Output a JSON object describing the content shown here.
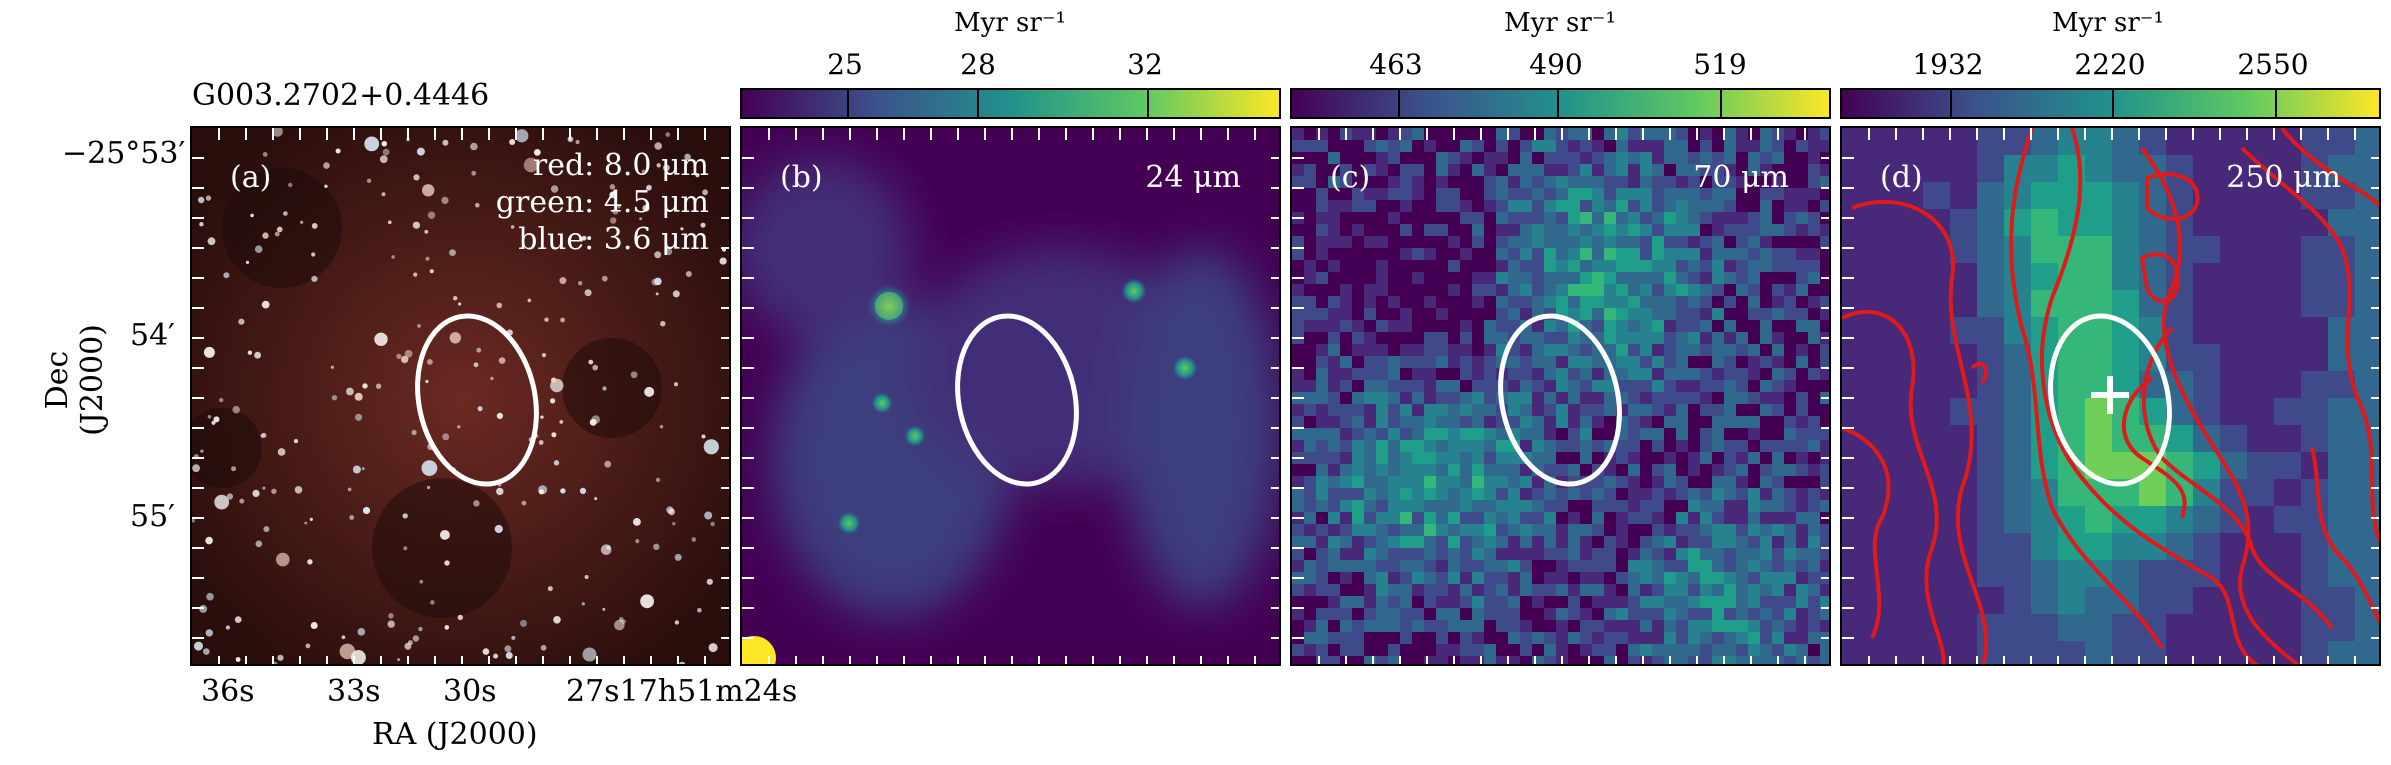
{
  "source_name": "G003.2702+0.4446",
  "panels": [
    {
      "tag": "(a)",
      "legend": [
        "red: 8.0 μm",
        "green: 4.5 μm",
        "blue: 3.6 μm"
      ]
    },
    {
      "tag": "(b)",
      "band": "24 μm",
      "colorbar": {
        "unit": "Myr sr⁻¹",
        "ticks": [
          "25",
          "28",
          "32"
        ]
      }
    },
    {
      "tag": "(c)",
      "band": "70 μm",
      "colorbar": {
        "unit": "Myr sr⁻¹",
        "ticks": [
          "463",
          "490",
          "519"
        ]
      }
    },
    {
      "tag": "(d)",
      "band": "250 μm",
      "colorbar": {
        "unit": "Myr sr⁻¹",
        "ticks": [
          "1932",
          "2220",
          "2550"
        ]
      }
    }
  ],
  "axes": {
    "xlabel": "RA (J2000)",
    "ylabel": "Dec (J2000)",
    "ra_ticks": [
      "36s",
      "33s",
      "30s",
      "27s17h51m24s"
    ],
    "dec_ticks": [
      "−25°53′",
      "54′",
      "55′"
    ]
  },
  "colors": {
    "ellipse": "#ffffff",
    "contours": "#e0191b",
    "marker": "#ffffff",
    "colormap": "viridis"
  }
}
